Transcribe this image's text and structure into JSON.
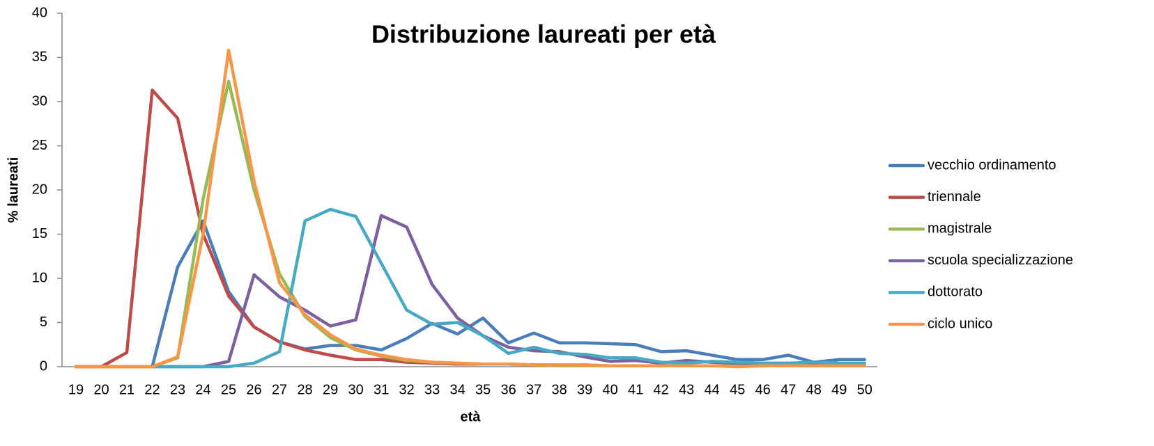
{
  "chart_data": {
    "type": "line",
    "title": "Distribuzione laureati per età",
    "x_label": "età",
    "y_label": "% laureati",
    "categories": [
      19,
      20,
      21,
      22,
      23,
      24,
      25,
      26,
      27,
      28,
      29,
      30,
      31,
      32,
      33,
      34,
      35,
      36,
      37,
      38,
      39,
      40,
      41,
      42,
      43,
      44,
      45,
      46,
      47,
      48,
      49,
      50
    ],
    "ylim": [
      0,
      40
    ],
    "yticks": [
      0,
      5,
      10,
      15,
      20,
      25,
      30,
      35,
      40
    ],
    "legend": "right",
    "series": [
      {
        "name": "vecchio ordinamento",
        "color": "#4a7ebb",
        "values": [
          0,
          0,
          0,
          0,
          11.3,
          16.5,
          8.5,
          4.5,
          2.8,
          2.0,
          2.4,
          2.4,
          1.9,
          3.2,
          4.9,
          3.7,
          5.5,
          2.7,
          3.8,
          2.7,
          2.7,
          2.6,
          2.5,
          1.7,
          1.8,
          1.3,
          0.8,
          0.8,
          1.3,
          0.5,
          0.8,
          0.8
        ]
      },
      {
        "name": "triennale",
        "color": "#be4b48",
        "values": [
          0,
          0,
          1.6,
          31.3,
          28.1,
          15,
          8,
          4.5,
          2.8,
          1.9,
          1.3,
          0.8,
          0.8,
          0.5,
          0.4,
          0.3,
          0.3,
          0.3,
          0.2,
          0.2,
          0.2,
          0.1,
          0.1,
          0.1,
          0.1,
          0.1,
          0.1,
          0.1,
          0.1,
          0.1,
          0.1,
          0.1
        ]
      },
      {
        "name": "magistrale",
        "color": "#98b954",
        "values": [
          0,
          0,
          0,
          0,
          1,
          19,
          32.3,
          20,
          10.5,
          5.7,
          3.3,
          1.9,
          1.2,
          0.7,
          0.5,
          0.4,
          0.3,
          0.3,
          0.2,
          0.1,
          0.1,
          0.1,
          0.1,
          0.1,
          0.1,
          0.1,
          0.1,
          0.1,
          0.1,
          0.1,
          0.1,
          0.1
        ]
      },
      {
        "name": "scuola specializzazione",
        "color": "#7d60a0",
        "values": [
          0,
          0,
          0,
          0,
          0,
          0,
          0.6,
          10.4,
          7.9,
          6.4,
          4.6,
          5.3,
          17.1,
          15.8,
          9.3,
          5.5,
          3.5,
          2.2,
          1.8,
          1.7,
          1.1,
          0.6,
          0.7,
          0.4,
          0.7,
          0.5,
          0.4,
          0.3,
          0.3,
          0.3,
          0.3,
          0.3
        ]
      },
      {
        "name": "dottorato",
        "color": "#46aac5",
        "values": [
          0,
          0,
          0,
          0,
          0,
          0,
          0,
          0.4,
          1.7,
          16.5,
          17.8,
          17,
          11.7,
          6.4,
          4.8,
          5,
          3.5,
          1.5,
          2.2,
          1.5,
          1.4,
          1.0,
          1.0,
          0.5,
          0.4,
          0.6,
          0.5,
          0.4,
          0.4,
          0.5,
          0.4,
          0.4
        ]
      },
      {
        "name": "ciclo unico",
        "color": "#f79646",
        "values": [
          0,
          0,
          0,
          0,
          1.1,
          15,
          35.8,
          21,
          9.5,
          5.9,
          3.6,
          2.0,
          1.3,
          0.8,
          0.5,
          0.4,
          0.3,
          0.3,
          0.2,
          0.2,
          0.2,
          0.1,
          0.1,
          0.1,
          0.1,
          0.1,
          0,
          0.1,
          0.1,
          0.1,
          0.1,
          0.1
        ]
      }
    ]
  }
}
